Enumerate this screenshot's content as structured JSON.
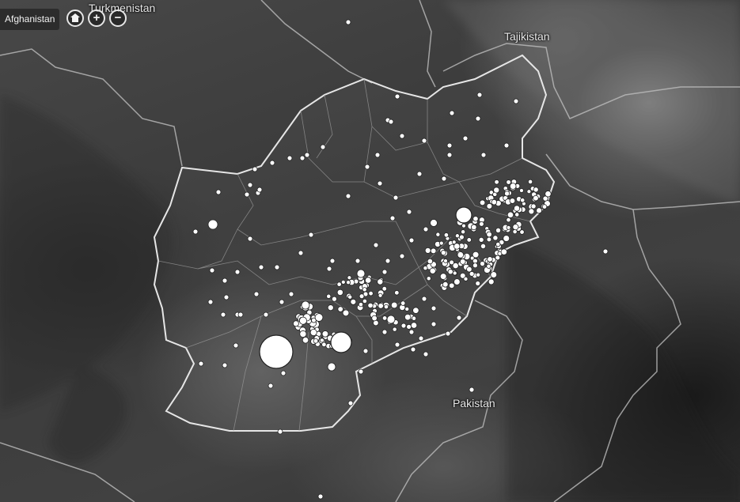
{
  "map": {
    "title": "Afghanistan",
    "labels": {
      "turkmenistan": "Turkmenistan",
      "tajikistan": "Tajikistan",
      "pakistan": "Pakistan"
    },
    "marker_color": "#ffffff",
    "marker_stroke": "#222222",
    "border_color": "#dcdcdc",
    "controls": {
      "home_icon": "home-icon",
      "zoom_in_label": "+",
      "zoom_out_label": "−"
    }
  }
}
